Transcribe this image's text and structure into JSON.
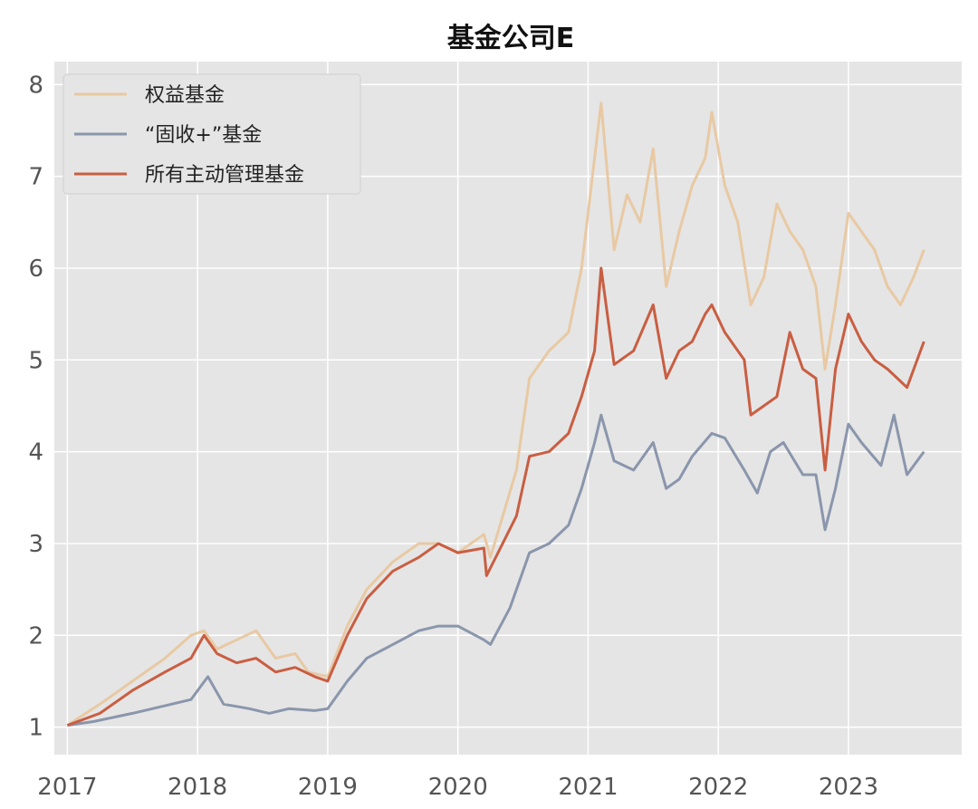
{
  "chart_data": {
    "type": "line",
    "title": "基金公司E",
    "xlabel": "",
    "ylabel": "",
    "xlim": [
      2016.9,
      2023.87
    ],
    "ylim": [
      0.7,
      8.25
    ],
    "xticks": [
      2017,
      2018,
      2019,
      2020,
      2021,
      2022,
      2023
    ],
    "xtick_labels": [
      "2017",
      "2018",
      "2019",
      "2020",
      "2021",
      "2022",
      "2023"
    ],
    "yticks": [
      1,
      2,
      3,
      4,
      5,
      6,
      7,
      8
    ],
    "ytick_labels": [
      "1",
      "2",
      "3",
      "4",
      "5",
      "6",
      "7",
      "8"
    ],
    "grid": true,
    "legend": "top-left",
    "series": [
      {
        "name": "权益基金",
        "color": "#e8c9a3",
        "x": [
          2017.0,
          2017.25,
          2017.5,
          2017.75,
          2017.95,
          2018.05,
          2018.15,
          2018.3,
          2018.45,
          2018.6,
          2018.75,
          2018.85,
          2019.0,
          2019.15,
          2019.3,
          2019.5,
          2019.7,
          2019.85,
          2020.0,
          2020.2,
          2020.25,
          2020.45,
          2020.55,
          2020.7,
          2020.85,
          2020.95,
          2021.05,
          2021.1,
          2021.2,
          2021.3,
          2021.4,
          2021.5,
          2021.6,
          2021.7,
          2021.8,
          2021.9,
          2021.95,
          2022.05,
          2022.15,
          2022.25,
          2022.35,
          2022.45,
          2022.55,
          2022.65,
          2022.75,
          2022.82,
          2022.9,
          2023.0,
          2023.1,
          2023.2,
          2023.3,
          2023.4,
          2023.5,
          2023.58
        ],
        "values": [
          1.02,
          1.25,
          1.5,
          1.75,
          2.0,
          2.05,
          1.85,
          1.95,
          2.05,
          1.75,
          1.8,
          1.6,
          1.55,
          2.1,
          2.5,
          2.8,
          3.0,
          3.0,
          2.9,
          3.1,
          2.85,
          3.8,
          4.8,
          5.1,
          5.3,
          6.0,
          7.2,
          7.8,
          6.2,
          6.8,
          6.5,
          7.3,
          5.8,
          6.4,
          6.9,
          7.2,
          7.7,
          6.9,
          6.5,
          5.6,
          5.9,
          6.7,
          6.4,
          6.2,
          5.8,
          4.9,
          5.6,
          6.6,
          6.4,
          6.2,
          5.8,
          5.6,
          5.9,
          6.2
        ]
      },
      {
        "name": "“固收+”基金",
        "color": "#8a96ac",
        "x": [
          2017.0,
          2017.2,
          2017.5,
          2017.8,
          2017.95,
          2018.08,
          2018.2,
          2018.4,
          2018.55,
          2018.7,
          2018.9,
          2019.0,
          2019.15,
          2019.3,
          2019.5,
          2019.7,
          2019.85,
          2020.0,
          2020.2,
          2020.25,
          2020.4,
          2020.55,
          2020.7,
          2020.85,
          2020.95,
          2021.05,
          2021.1,
          2021.2,
          2021.35,
          2021.5,
          2021.6,
          2021.7,
          2021.8,
          2021.95,
          2022.05,
          2022.2,
          2022.3,
          2022.4,
          2022.5,
          2022.65,
          2022.75,
          2022.82,
          2022.9,
          2023.0,
          2023.1,
          2023.25,
          2023.35,
          2023.45,
          2023.58
        ],
        "values": [
          1.02,
          1.06,
          1.15,
          1.25,
          1.3,
          1.55,
          1.25,
          1.2,
          1.15,
          1.2,
          1.18,
          1.2,
          1.5,
          1.75,
          1.9,
          2.05,
          2.1,
          2.1,
          1.95,
          1.9,
          2.3,
          2.9,
          3.0,
          3.2,
          3.6,
          4.1,
          4.4,
          3.9,
          3.8,
          4.1,
          3.6,
          3.7,
          3.95,
          4.2,
          4.15,
          3.8,
          3.55,
          4.0,
          4.1,
          3.75,
          3.75,
          3.15,
          3.6,
          4.3,
          4.1,
          3.85,
          4.4,
          3.75,
          4.0
        ]
      },
      {
        "name": "所有主动管理基金",
        "color": "#c95e42",
        "x": [
          2017.0,
          2017.25,
          2017.5,
          2017.75,
          2017.95,
          2018.05,
          2018.15,
          2018.3,
          2018.45,
          2018.6,
          2018.75,
          2018.9,
          2019.0,
          2019.15,
          2019.3,
          2019.5,
          2019.7,
          2019.85,
          2020.0,
          2020.2,
          2020.22,
          2020.45,
          2020.55,
          2020.7,
          2020.85,
          2020.95,
          2021.05,
          2021.1,
          2021.2,
          2021.35,
          2021.5,
          2021.6,
          2021.7,
          2021.8,
          2021.9,
          2021.95,
          2022.05,
          2022.2,
          2022.25,
          2022.35,
          2022.45,
          2022.55,
          2022.65,
          2022.75,
          2022.82,
          2022.9,
          2023.0,
          2023.1,
          2023.2,
          2023.3,
          2023.45,
          2023.58
        ],
        "values": [
          1.02,
          1.15,
          1.4,
          1.6,
          1.75,
          2.0,
          1.8,
          1.7,
          1.75,
          1.6,
          1.65,
          1.55,
          1.5,
          2.0,
          2.4,
          2.7,
          2.85,
          3.0,
          2.9,
          2.95,
          2.65,
          3.3,
          3.95,
          4.0,
          4.2,
          4.6,
          5.1,
          6.0,
          4.95,
          5.1,
          5.6,
          4.8,
          5.1,
          5.2,
          5.5,
          5.6,
          5.3,
          5.0,
          4.4,
          4.5,
          4.6,
          5.3,
          4.9,
          4.8,
          3.8,
          4.9,
          5.5,
          5.2,
          5.0,
          4.9,
          4.7,
          5.2
        ]
      }
    ]
  }
}
